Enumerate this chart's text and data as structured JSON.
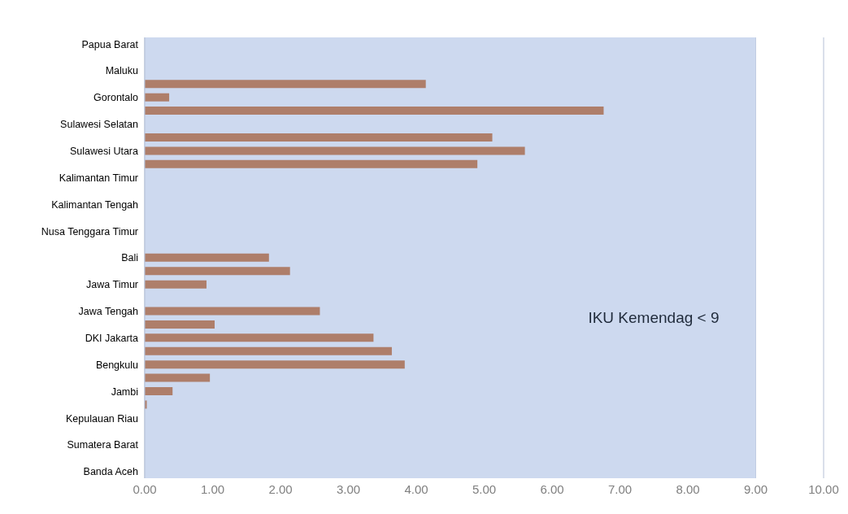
{
  "chart_data": {
    "type": "bar",
    "orientation": "horizontal",
    "categories": [
      "Papua Barat",
      null,
      "Maluku",
      null,
      "Gorontalo",
      null,
      "Sulawesi Selatan",
      null,
      "Sulawesi Utara",
      null,
      "Kalimantan Timur",
      null,
      "Kalimantan Tengah",
      null,
      "Nusa Tenggara Timur",
      null,
      "Bali",
      null,
      "Jawa Timur",
      null,
      "Jawa Tengah",
      null,
      "DKI Jakarta",
      null,
      "Bengkulu",
      null,
      "Jambi",
      null,
      "Kepulauan Riau",
      null,
      "Sumatera Barat",
      null,
      "Banda Aceh"
    ],
    "values": [
      null,
      null,
      null,
      4.14,
      0.36,
      6.76,
      null,
      5.12,
      5.6,
      4.9,
      null,
      null,
      null,
      null,
      null,
      null,
      1.83,
      2.14,
      0.91,
      null,
      2.58,
      1.03,
      3.37,
      3.64,
      3.83,
      0.96,
      0.41,
      0.03,
      null,
      null,
      null,
      null,
      null
    ],
    "color": "#ae7e6a",
    "xlim": [
      0,
      10
    ],
    "xticks": [
      {
        "value": 0,
        "label": "0.00"
      },
      {
        "value": 1,
        "label": "1.00"
      },
      {
        "value": 2,
        "label": "2.00"
      },
      {
        "value": 3,
        "label": "3.00"
      },
      {
        "value": 4,
        "label": "4.00"
      },
      {
        "value": 5,
        "label": "5.00"
      },
      {
        "value": 6,
        "label": "6.00"
      },
      {
        "value": 7,
        "label": "7.00"
      },
      {
        "value": 8,
        "label": "8.00"
      },
      {
        "value": 9,
        "label": "9.00"
      },
      {
        "value": 10,
        "label": "10.00"
      }
    ],
    "bands": [
      {
        "axis": "x",
        "from": 0,
        "to": 9,
        "label": "IKU Kemendag < 9",
        "color": "#cdd9ef"
      }
    ],
    "grid": "x"
  }
}
